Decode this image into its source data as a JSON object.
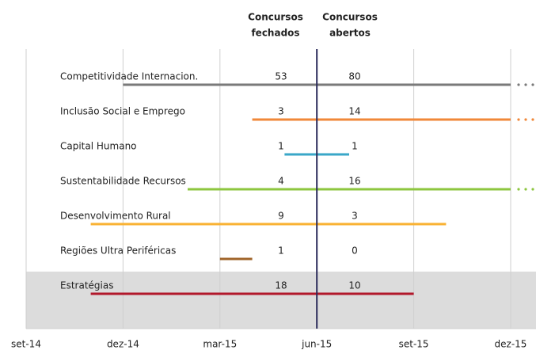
{
  "chart_data": {
    "type": "timeline",
    "headers": {
      "closed": [
        "Concursos",
        "fechados"
      ],
      "open": [
        "Concursos",
        "abertos"
      ]
    },
    "header_color": "#f5a623",
    "xlim": [
      "2014-09",
      "2015-12"
    ],
    "xticks": [
      {
        "value": "2014-09",
        "label": "set-14"
      },
      {
        "value": "2014-12",
        "label": "dez-14"
      },
      {
        "value": "2015-03",
        "label": "mar-15"
      },
      {
        "value": "2015-06",
        "label": "jun-15"
      },
      {
        "value": "2015-09",
        "label": "set-15"
      },
      {
        "value": "2015-12",
        "label": "dez-15"
      }
    ],
    "marker": "2015-06",
    "grid": true,
    "series": [
      {
        "name": "Competitividade Internacion.",
        "color": "#7a7a7a",
        "start": "2014-12",
        "end": "2015-12",
        "ongoing": true,
        "closed": 53,
        "open": 80
      },
      {
        "name": "Inclusão Social e Emprego",
        "color": "#f0883a",
        "start": "2015-04",
        "end": "2015-12",
        "ongoing": true,
        "closed": 3,
        "open": 14
      },
      {
        "name": "Capital Humano",
        "color": "#3aa7c8",
        "start": "2015-05",
        "end": "2015-07",
        "ongoing": false,
        "closed": 1,
        "open": 1
      },
      {
        "name": "Sustentabilidade Recursos",
        "color": "#8dc63f",
        "start": "2015-02",
        "end": "2015-12",
        "ongoing": true,
        "closed": 4,
        "open": 16
      },
      {
        "name": "Desenvolvimento Rural",
        "color": "#f9b233",
        "start": "2014-11",
        "end": "2015-10",
        "ongoing": false,
        "closed": 9,
        "open": 3
      },
      {
        "name": "Regiões Ultra Periféricas",
        "color": "#a0642a",
        "start": "2015-03",
        "end": "2015-04",
        "ongoing": false,
        "closed": 1,
        "open": 0
      },
      {
        "name": "Estratégias",
        "color": "#b2182b",
        "start": "2014-11",
        "end": "2015-09",
        "ongoing": false,
        "closed": 18,
        "open": 10,
        "highlight": true
      }
    ]
  }
}
